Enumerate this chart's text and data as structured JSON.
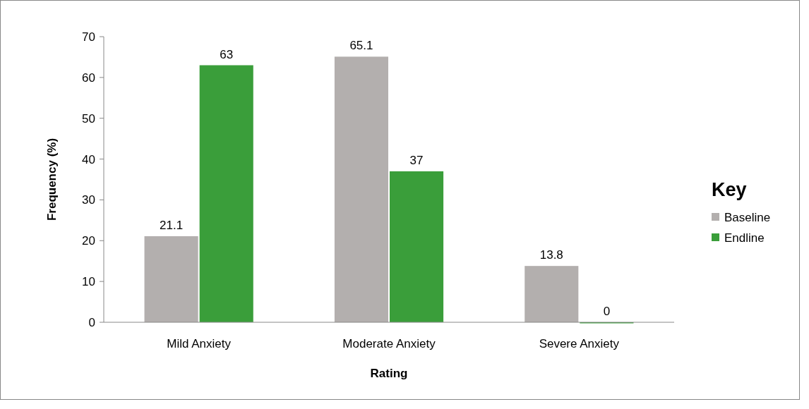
{
  "chart_data": {
    "type": "bar",
    "xlabel": "Rating",
    "ylabel": "Frequency (%)",
    "legend_title": "Key",
    "categories": [
      "Mild Anxiety",
      "Moderate Anxiety",
      "Severe Anxiety"
    ],
    "series": [
      {
        "name": "Baseline",
        "color": "#b3afae",
        "values": [
          21.1,
          65.1,
          13.8
        ]
      },
      {
        "name": "Endline",
        "color": "#3a9e3a",
        "values": [
          63,
          37,
          0
        ]
      }
    ],
    "ylim": [
      0,
      70
    ],
    "yticks": [
      0,
      10,
      20,
      30,
      40,
      50,
      60,
      70
    ],
    "grid": false,
    "legend": "right",
    "data_labels": true
  }
}
